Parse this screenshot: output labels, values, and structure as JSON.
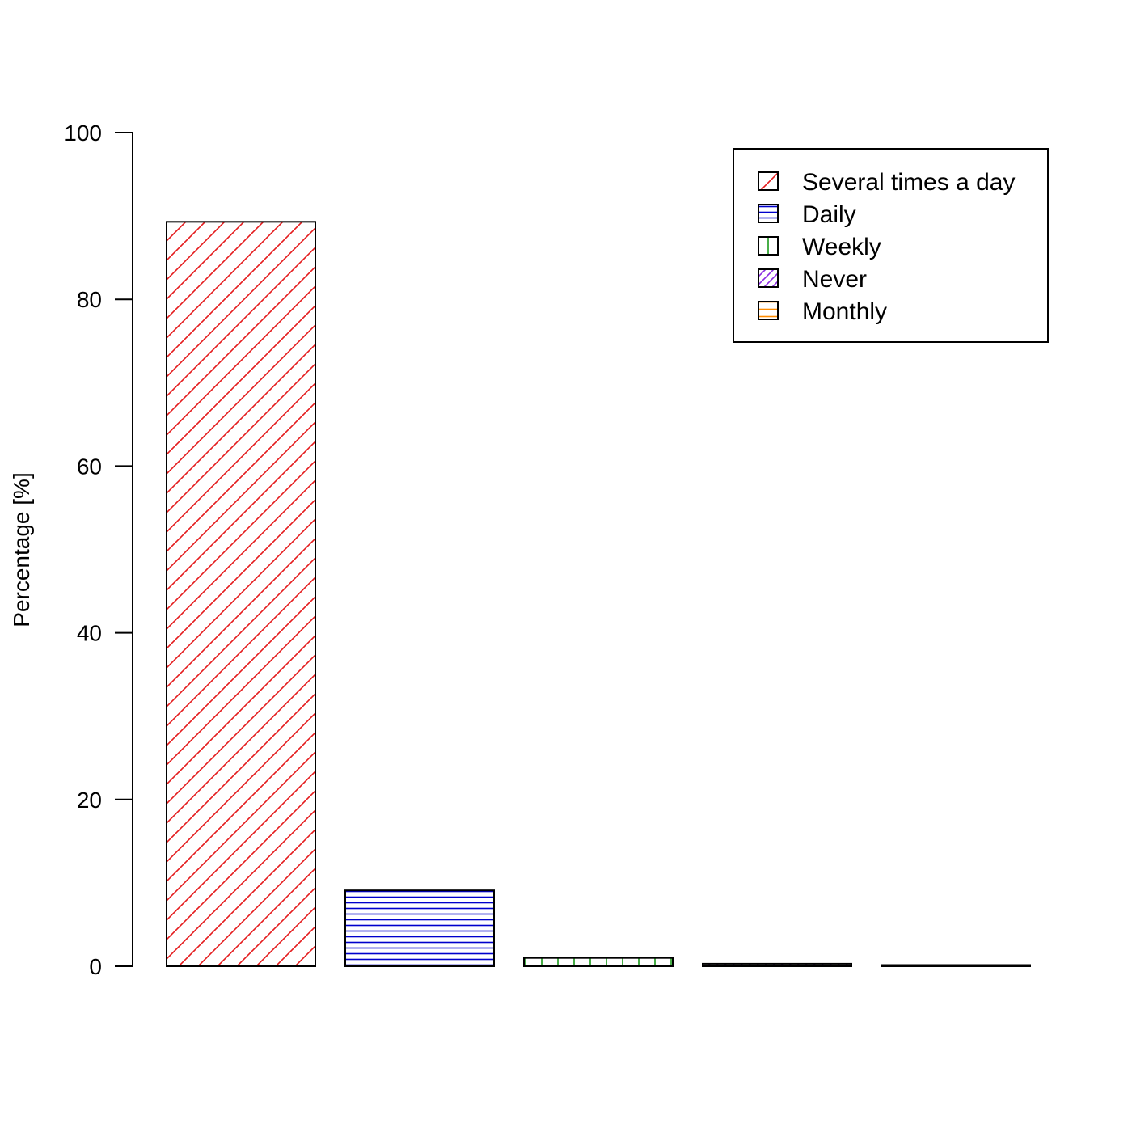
{
  "chart_data": {
    "type": "bar",
    "title": "",
    "xlabel": "",
    "ylabel": "Percentage [%]",
    "ylim": [
      0,
      100
    ],
    "yticks": [
      0,
      20,
      40,
      60,
      80,
      100
    ],
    "grid": false,
    "legend_position": "top-right",
    "categories": [
      "Several times a day",
      "Daily",
      "Weekly",
      "Never",
      "Monthly"
    ],
    "values": [
      89.3,
      9.1,
      1.0,
      0.3,
      0.1
    ],
    "colors": [
      "#e41a1c",
      "#0000cc",
      "#1a9a1a",
      "#8a2be2",
      "#ff8c00"
    ],
    "patterns": [
      "diagonal-sparse",
      "horizontal-dense",
      "vertical",
      "diagonal-dense",
      "horizontal"
    ]
  }
}
